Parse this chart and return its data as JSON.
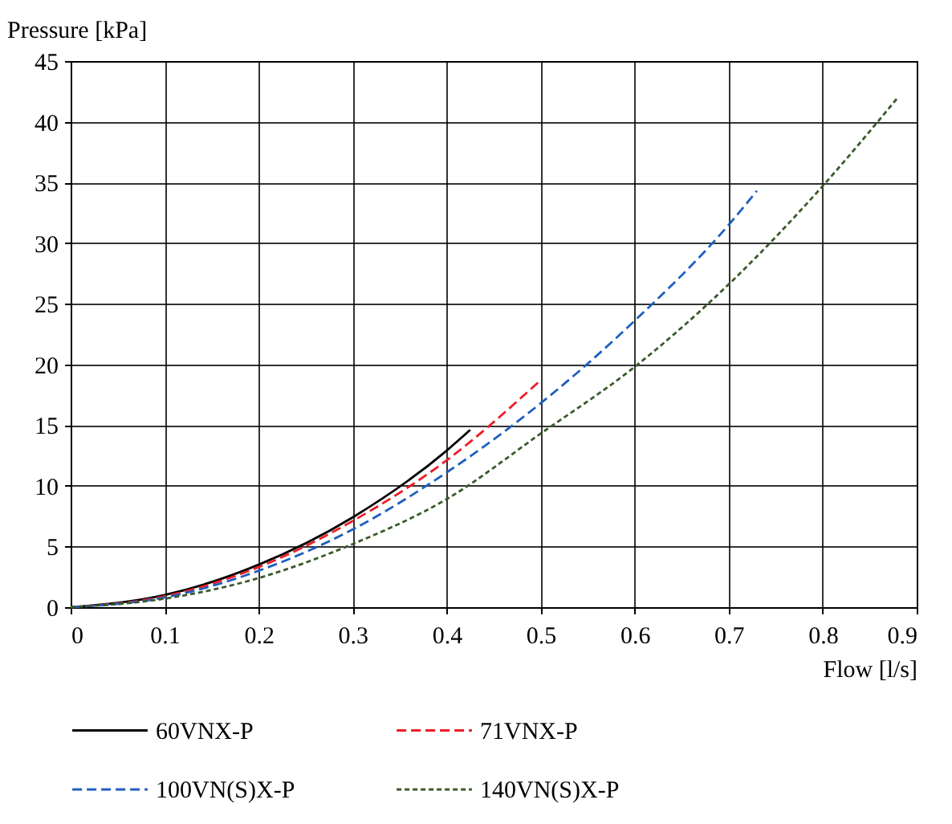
{
  "chart_data": {
    "type": "line",
    "xlabel": "Flow [l/s]",
    "ylabel": "Pressure [kPa]",
    "xlim": [
      0,
      0.9
    ],
    "xticks": [
      0,
      0.1,
      0.2,
      0.3,
      0.4,
      0.5,
      0.6,
      0.7,
      0.8,
      0.9
    ],
    "ylim": [
      0,
      45
    ],
    "yticks": [
      0,
      5,
      10,
      15,
      20,
      25,
      30,
      35,
      40,
      45
    ],
    "grid": true,
    "legend": "bottom",
    "series": [
      {
        "name": "60VNX-P",
        "color": "#000000",
        "line_style": "solid",
        "x": [
          0,
          0.1,
          0.2,
          0.3,
          0.4,
          0.425
        ],
        "values": [
          0,
          1,
          3.5,
          7.4,
          12.9,
          14.6
        ]
      },
      {
        "name": "71VNX-P",
        "color": "#ee1c25",
        "line_style": "dashed",
        "x": [
          0,
          0.1,
          0.2,
          0.3,
          0.4,
          0.5
        ],
        "values": [
          0,
          0.9,
          3.3,
          7.1,
          12.1,
          18.7
        ]
      },
      {
        "name": "100VN(S)X-P",
        "color": "#1f5fbf",
        "line_style": "dashed",
        "x": [
          0,
          0.1,
          0.2,
          0.3,
          0.4,
          0.5,
          0.6,
          0.7,
          0.73
        ],
        "values": [
          0,
          0.8,
          3,
          6.4,
          11.1,
          16.8,
          23.6,
          31.5,
          34.3
        ]
      },
      {
        "name": "140VN(S)X-P",
        "color": "#3a5a2a",
        "line_style": "dotted",
        "x": [
          0,
          0.1,
          0.2,
          0.3,
          0.4,
          0.5,
          0.6,
          0.7,
          0.8,
          0.88
        ],
        "values": [
          0,
          0.7,
          2.4,
          5.2,
          8.9,
          14.3,
          19.8,
          26.6,
          34.7,
          42
        ]
      }
    ]
  }
}
